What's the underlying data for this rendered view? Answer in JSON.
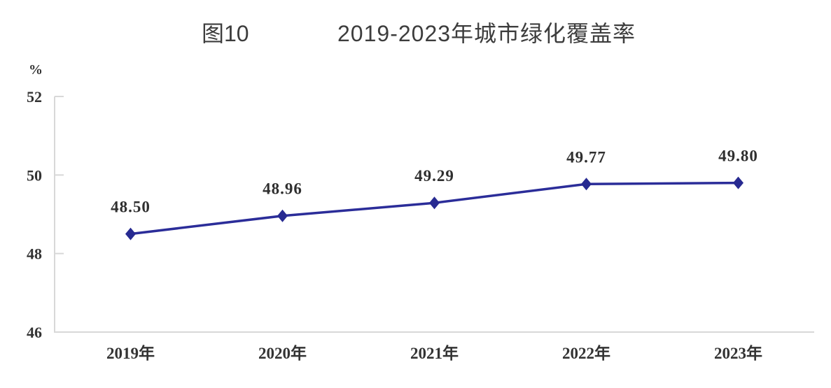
{
  "figure": {
    "label": "图10",
    "title": "2019-2023年城市绿化覆盖率"
  },
  "chart_data": {
    "type": "line",
    "title": "2019-2023年城市绿化覆盖率",
    "ylabel_unit": "%",
    "categories": [
      "2019年",
      "2020年",
      "2021年",
      "2022年",
      "2023年"
    ],
    "series": [
      {
        "name": "城市绿化覆盖率",
        "values": [
          48.5,
          48.96,
          49.29,
          49.77,
          49.8
        ],
        "data_labels": [
          "48.50",
          "48.96",
          "49.29",
          "49.77",
          "49.80"
        ]
      }
    ],
    "ylim": [
      46,
      52
    ],
    "y_ticks": [
      46,
      48,
      50,
      52
    ],
    "grid": false,
    "legend_position": "none",
    "marker": "diamond",
    "colors": {
      "line": "#2b2d99",
      "marker": "#272a91",
      "axis": "#d8d8d8",
      "tick_text": "#333333",
      "title_text": "#3d3d3d"
    }
  }
}
